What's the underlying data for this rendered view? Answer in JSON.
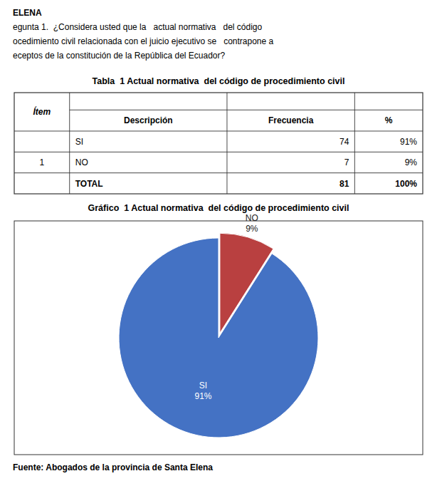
{
  "chart_data": [
    {
      "type": "table",
      "title": "Tabla  1 Actual normativa  del código de procedimiento civil",
      "annotations": [
        "ELENA",
        "egunta 1.  ¿Considera usted que la   actual normativa   del código",
        "ocedimiento civil relacionada con el juicio ejecutivo se   contrapone a",
        "eceptos de la constitución de la República del Ecuador?"
      ],
      "columns": [
        "Ítem",
        "Descripción",
        "Frecuencia",
        "%"
      ],
      "rows": [
        [
          null,
          "SI",
          "74",
          "91%"
        ],
        [
          "1",
          "NO",
          "7",
          "9%"
        ],
        [
          null,
          "TOTAL",
          "81",
          "100%"
        ]
      ]
    },
    {
      "type": "pie",
      "title": "Gráfico  1 Actual normativa  del código de procedimiento civil",
      "categories": [
        "NO",
        "SI"
      ],
      "values": [
        9,
        91
      ],
      "value_labels": [
        "9%",
        "91%"
      ],
      "colors": [
        "#b94040",
        "#4472c4"
      ],
      "data_labels": true,
      "annotations": [
        "Fuente: Abogados de la provincia de Santa Elena"
      ]
    }
  ]
}
